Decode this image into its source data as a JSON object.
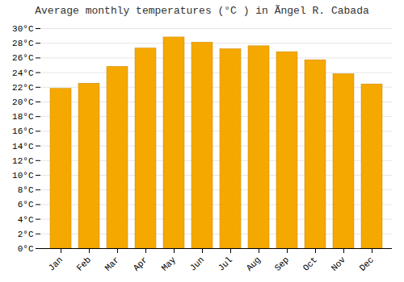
{
  "chart_data": {
    "type": "bar",
    "title": "Average monthly temperatures (°C ) in Ãngel R. Cabada",
    "categories": [
      "Jan",
      "Feb",
      "Mar",
      "Apr",
      "May",
      "Jun",
      "Jul",
      "Aug",
      "Sep",
      "Oct",
      "Nov",
      "Dec"
    ],
    "values": [
      21.8,
      22.5,
      24.8,
      27.3,
      28.8,
      28.1,
      27.2,
      27.6,
      26.8,
      25.7,
      23.8,
      22.4
    ],
    "color": "#F5A800",
    "ylim": [
      0,
      30
    ],
    "yticks": [
      {
        "value": 0,
        "label": "0°C"
      },
      {
        "value": 2,
        "label": "2°C"
      },
      {
        "value": 4,
        "label": "4°C"
      },
      {
        "value": 6,
        "label": "6°C"
      },
      {
        "value": 8,
        "label": "8°C"
      },
      {
        "value": 10,
        "label": "10°C"
      },
      {
        "value": 12,
        "label": "12°C"
      },
      {
        "value": 14,
        "label": "14°C"
      },
      {
        "value": 16,
        "label": "16°C"
      },
      {
        "value": 18,
        "label": "18°C"
      },
      {
        "value": 20,
        "label": "20°C"
      },
      {
        "value": 22,
        "label": "22°C"
      },
      {
        "value": 24,
        "label": "24°C"
      },
      {
        "value": 26,
        "label": "26°C"
      },
      {
        "value": 28,
        "label": "28°C"
      },
      {
        "value": 30,
        "label": "30°C"
      }
    ],
    "grid": true
  }
}
